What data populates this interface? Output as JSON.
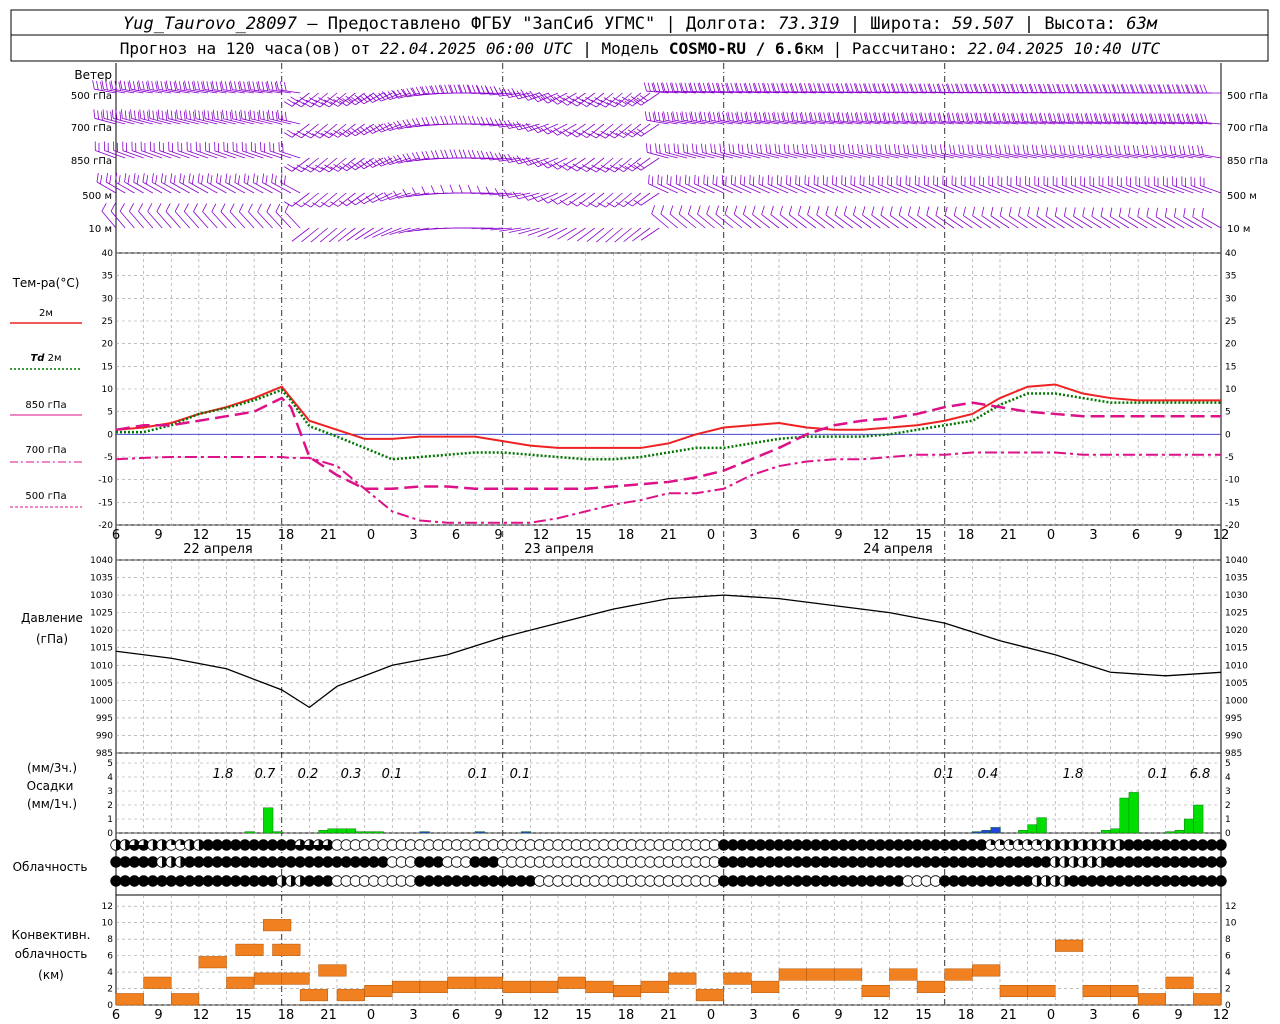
{
  "header": {
    "station": "Yug_Taurovo_28097",
    "provider": "– Предоставлено ФГБУ \"ЗапСиб УГМС\"",
    "lon_label": "Долгота:",
    "lon_value": "73.319",
    "lat_label": "Широта:",
    "lat_value": "59.507",
    "alt_label": "Высота:",
    "alt_value": "63м",
    "forecast_text": "Прогноз на 120 часа(ов)  от",
    "forecast_start": "22.04.2025 06:00 UTC",
    "model_label": "Модель",
    "model_name": "COSMO-RU / 6.6",
    "model_unit": "км",
    "calc_label": "Рассчитано:",
    "calc_time": "22.04.2025 10:40 UTC"
  },
  "wind": {
    "title": "Ветер",
    "levels": [
      "500 гПа",
      "700 гПа",
      "850 гПа",
      "500 м",
      "10  м"
    ],
    "color": "#8800cc",
    "rows": [
      {
        "dir_start": 280,
        "dir_end": 270,
        "speed": 35
      },
      {
        "dir_start": 285,
        "dir_end": 275,
        "speed": 30
      },
      {
        "dir_start": 290,
        "dir_end": 280,
        "speed": 25
      },
      {
        "dir_start": 300,
        "dir_end": 290,
        "speed": 20
      },
      {
        "dir_start": 320,
        "dir_end": 300,
        "speed": 10
      }
    ]
  },
  "temperature": {
    "title": "Тем-ра(°C)",
    "legend": [
      {
        "label": "2м",
        "color": "#ee2222",
        "style": "solid"
      },
      {
        "label_prefix": "Td",
        "label": "2м",
        "color": "#007700",
        "style": "dotted"
      },
      {
        "label": "850 гПа",
        "color": "#dd1188",
        "style": "dashed"
      },
      {
        "label": "700 гПа",
        "color": "#dd1188",
        "style": "dashdot"
      },
      {
        "label": "500 гПа",
        "color": "#dd1188",
        "style": "dotted"
      }
    ],
    "ylim": [
      -20,
      40
    ],
    "yticks": [
      -20,
      -15,
      -10,
      -5,
      0,
      5,
      10,
      15,
      20,
      25,
      30,
      35,
      40
    ],
    "zero_line_color": "#3333cc"
  },
  "x_axis": {
    "tick_labels": [
      "6",
      "9",
      "12",
      "15",
      "18",
      "21",
      "0",
      "3",
      "6",
      "9",
      "12",
      "15",
      "18",
      "21",
      "0",
      "3",
      "6",
      "9",
      "12",
      "15",
      "18",
      "21",
      "0",
      "3",
      "6",
      "9",
      "12"
    ],
    "days": [
      "22 апреля",
      "23 апреля",
      "24 апреля"
    ]
  },
  "pressure": {
    "title": "Давление",
    "unit": "(гПа)",
    "ylim": [
      985,
      1040
    ],
    "yticks": [
      985,
      990,
      995,
      1000,
      1005,
      1010,
      1015,
      1020,
      1025,
      1030,
      1035,
      1040
    ]
  },
  "precipitation": {
    "unit_top": "(мм/3ч.)",
    "title": "Осадки",
    "unit_bottom": "(мм/1ч.)",
    "ylim": [
      0,
      5
    ],
    "yticks": [
      0,
      1,
      2,
      3,
      4,
      5
    ],
    "labels": [
      "1.8",
      "0.7",
      "0.2",
      "0.3",
      "0.1",
      "0.1",
      "0.1",
      "0.1",
      "0.4",
      "1.8",
      "0.1",
      "6.8"
    ],
    "rain_color": "#00dd00",
    "snow_color": "#2244dd"
  },
  "cloudiness": {
    "title": "Облачность"
  },
  "convective": {
    "title_1": "Конвективн.",
    "title_2": "облачность",
    "unit": "(км)",
    "ylim": [
      0,
      13
    ],
    "yticks": [
      0,
      2,
      4,
      6,
      8,
      10,
      12
    ],
    "color": "#f08020"
  },
  "chart_data": [
    {
      "type": "line",
      "title": "Тем-ра(°C)",
      "x_hours_from_start": [
        0,
        3,
        6,
        9,
        12,
        15,
        18,
        19,
        21,
        24,
        27,
        30,
        33,
        36,
        39,
        42,
        45,
        48,
        51,
        54,
        57,
        60,
        63,
        66,
        69,
        72,
        75,
        78,
        81,
        84,
        87,
        90,
        93,
        96,
        99,
        102,
        105,
        108,
        111,
        114,
        117,
        120
      ],
      "series": [
        {
          "name": "2м",
          "values": [
            1,
            1.5,
            2.5,
            4.5,
            6,
            8,
            10.5,
            8,
            3,
            1,
            -1,
            -1,
            -0.5,
            -0.5,
            -0.5,
            -1.5,
            -2.5,
            -3,
            -3,
            -3,
            -3,
            -2,
            0,
            1.5,
            2,
            2.5,
            1.5,
            1,
            1,
            1.5,
            2,
            3,
            4.5,
            8,
            10.5,
            11,
            9,
            8,
            7.5,
            7.5,
            7.5,
            7.5
          ]
        },
        {
          "name": "Td 2м",
          "values": [
            0.5,
            0.5,
            2,
            4.5,
            5.8,
            7.5,
            9.8,
            7.5,
            1.8,
            -0.5,
            -3,
            -5.5,
            -5,
            -4.5,
            -4,
            -4,
            -4.5,
            -5,
            -5.5,
            -5.5,
            -5,
            -4,
            -3,
            -3,
            -2,
            -1,
            -0.5,
            -0.5,
            -0.5,
            0,
            1,
            2,
            3,
            6.5,
            9,
            9,
            8,
            7,
            7,
            7,
            7,
            7
          ]
        },
        {
          "name": "850 гПа",
          "values": [
            1,
            2,
            2,
            3,
            4,
            5,
            8,
            6,
            -5,
            -9,
            -12,
            -12,
            -11.5,
            -11.5,
            -12,
            -12,
            -12,
            -12,
            -12,
            -11.5,
            -11,
            -10.5,
            -9.5,
            -8,
            -5.5,
            -3,
            0,
            2,
            3,
            3.5,
            4.5,
            6,
            7,
            6,
            5,
            4.5,
            4,
            4,
            4,
            4,
            4,
            4
          ]
        },
        {
          "name": "700 гПа",
          "values": [
            -5.5,
            -5.2,
            -5,
            -5,
            -5,
            -5,
            -5,
            -5.2,
            -5.2,
            -7,
            -12,
            -17,
            -19,
            -19.5,
            -19.5,
            -19.5,
            -19.5,
            -18.5,
            -17,
            -15.5,
            -14.5,
            -13,
            -13,
            -12,
            -9,
            -7,
            -6,
            -5.5,
            -5.5,
            -5,
            -4.5,
            -4.5,
            -4,
            -4,
            -4,
            -4,
            -4.5,
            -4.5,
            -4.5,
            -4.5,
            -4.5,
            -4.5
          ]
        }
      ],
      "ylim": [
        -20,
        40
      ],
      "ylabel": "Тем-ра(°C)"
    },
    {
      "type": "line",
      "title": "Давление",
      "x_hours_from_start": [
        0,
        6,
        12,
        18,
        21,
        24,
        30,
        36,
        42,
        48,
        54,
        60,
        66,
        72,
        78,
        84,
        90,
        96,
        102,
        108,
        114,
        120
      ],
      "series": [
        {
          "name": "Давление",
          "values": [
            1014,
            1012,
            1009,
            1003,
            998,
            1004,
            1010,
            1013,
            1018,
            1022,
            1026,
            1029,
            1030,
            1029,
            1027,
            1025,
            1022,
            1017,
            1013,
            1008,
            1007,
            1008
          ]
        }
      ],
      "ylim": [
        985,
        1040
      ],
      "ylabel": "Давление"
    },
    {
      "type": "bar",
      "title": "Осадки",
      "x_hours_from_start": [
        14,
        16,
        17,
        22,
        23,
        24,
        25,
        26,
        27,
        28,
        33,
        39,
        44,
        93,
        94,
        95,
        98,
        99,
        100,
        107,
        108,
        109,
        110,
        114,
        115,
        116,
        117
      ],
      "values": [
        0.1,
        1.8,
        0.1,
        0.2,
        0.3,
        0.3,
        0.3,
        0.1,
        0.1,
        0.1,
        0.1,
        0.1,
        0.1,
        0.1,
        0.2,
        0.4,
        0.2,
        0.6,
        1.1,
        0.2,
        0.3,
        2.5,
        2.9,
        0.1,
        0.2,
        1.0,
        2.0
      ],
      "ylim": [
        0,
        5
      ],
      "ylabel": "Осадки"
    },
    {
      "type": "bar",
      "title": "Конвективн. облачность",
      "x_hours_from_start": [
        0,
        3,
        6,
        9,
        12,
        13,
        15,
        16,
        17,
        18,
        20,
        22,
        24,
        27,
        30,
        33,
        36,
        39,
        42,
        45,
        48,
        51,
        54,
        57,
        60,
        63,
        66,
        69,
        72,
        75,
        78,
        81,
        84,
        87,
        90,
        93,
        96,
        99,
        102,
        105,
        108,
        111,
        114,
        117
      ],
      "values": [
        0.5,
        2.5,
        0.5,
        5,
        2.5,
        6.5,
        3,
        9.5,
        6.5,
        3,
        1,
        4,
        1,
        1.5,
        2,
        2,
        2.5,
        2.5,
        2,
        2,
        2.5,
        2,
        1.5,
        2,
        3,
        1,
        3,
        2,
        3.5,
        3.5,
        3.5,
        1.5,
        3.5,
        2,
        3.5,
        4,
        1.5,
        1.5,
        7,
        1.5,
        1.5,
        0.5,
        2.5,
        0.5
      ],
      "ylim": [
        0,
        13
      ],
      "ylabel": "Конвективн. облачность (км)"
    }
  ]
}
